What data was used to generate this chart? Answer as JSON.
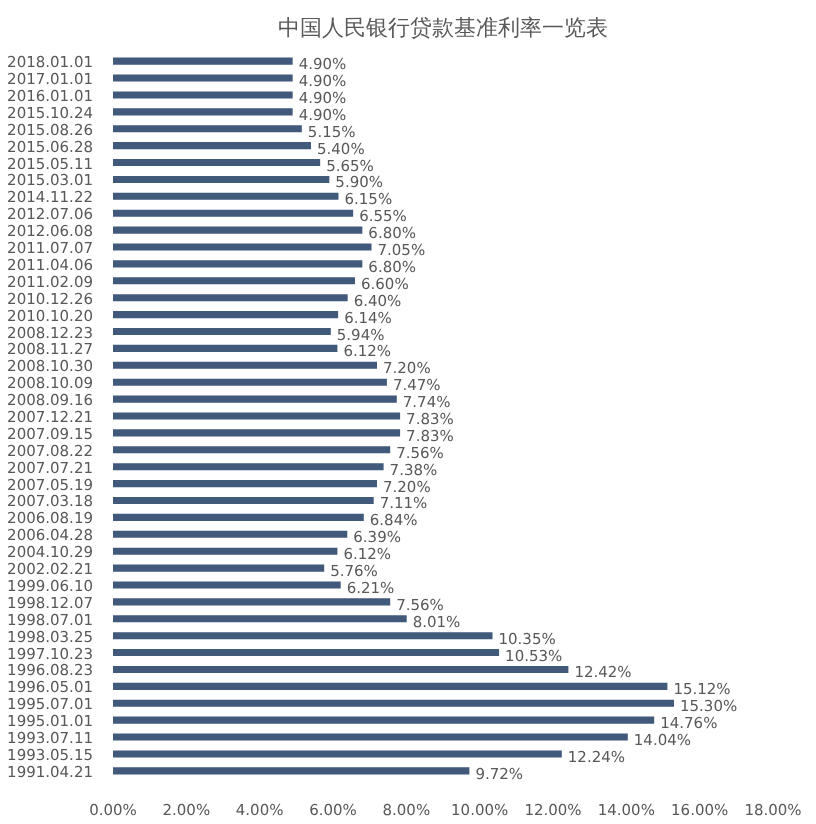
{
  "chart_data": {
    "type": "bar",
    "orientation": "horizontal",
    "title": "中国人民银行贷款基准利率一览表",
    "categories": [
      "2018.01.01",
      "2017.01.01",
      "2016.01.01",
      "2015.10.24",
      "2015.08.26",
      "2015.06.28",
      "2015.05.11",
      "2015.03.01",
      "2014.11.22",
      "2012.07.06",
      "2012.06.08",
      "2011.07.07",
      "2011.04.06",
      "2011.02.09",
      "2010.12.26",
      "2010.10.20",
      "2008.12.23",
      "2008.11.27",
      "2008.10.30",
      "2008.10.09",
      "2008.09.16",
      "2007.12.21",
      "2007.09.15",
      "2007.08.22",
      "2007.07.21",
      "2007.05.19",
      "2007.03.18",
      "2006.08.19",
      "2006.04.28",
      "2004.10.29",
      "2002.02.21",
      "1999.06.10",
      "1998.12.07",
      "1998.07.01",
      "1998.03.25",
      "1997.10.23",
      "1996.08.23",
      "1996.05.01",
      "1995.07.01",
      "1995.01.01",
      "1993.07.11",
      "1993.05.15",
      "1991.04.21"
    ],
    "values": [
      4.9,
      4.9,
      4.9,
      4.9,
      5.15,
      5.4,
      5.65,
      5.9,
      6.15,
      6.55,
      6.8,
      7.05,
      6.8,
      6.6,
      6.4,
      6.14,
      5.94,
      6.12,
      7.2,
      7.47,
      7.74,
      7.83,
      7.83,
      7.56,
      7.38,
      7.2,
      7.11,
      6.84,
      6.39,
      6.12,
      5.76,
      6.21,
      7.56,
      8.01,
      10.35,
      10.53,
      12.42,
      15.12,
      15.3,
      14.76,
      14.04,
      12.24,
      9.72
    ],
    "value_labels": [
      "4.90%",
      "4.90%",
      "4.90%",
      "4.90%",
      "5.15%",
      "5.40%",
      "5.65%",
      "5.90%",
      "6.15%",
      "6.55%",
      "6.80%",
      "7.05%",
      "6.80%",
      "6.60%",
      "6.40%",
      "6.14%",
      "5.94%",
      "6.12%",
      "7.20%",
      "7.47%",
      "7.74%",
      "7.83%",
      "7.83%",
      "7.56%",
      "7.38%",
      "7.20%",
      "7.11%",
      "6.84%",
      "6.39%",
      "6.12%",
      "5.76%",
      "6.21%",
      "7.56%",
      "8.01%",
      "10.35%",
      "10.53%",
      "12.42%",
      "15.12%",
      "15.30%",
      "14.76%",
      "14.04%",
      "12.24%",
      "9.72%"
    ],
    "color": "#41597a",
    "xlim": [
      0,
      18
    ],
    "xticks": [
      {
        "value": 0,
        "label": "0.00%"
      },
      {
        "value": 2,
        "label": "2.00%"
      },
      {
        "value": 4,
        "label": "4.00%"
      },
      {
        "value": 6,
        "label": "6.00%"
      },
      {
        "value": 8,
        "label": "8.00%"
      },
      {
        "value": 10,
        "label": "10.00%"
      },
      {
        "value": 12,
        "label": "12.00%"
      },
      {
        "value": 14,
        "label": "14.00%"
      },
      {
        "value": 16,
        "label": "16.00%"
      },
      {
        "value": 18,
        "label": "18.00%"
      }
    ]
  }
}
